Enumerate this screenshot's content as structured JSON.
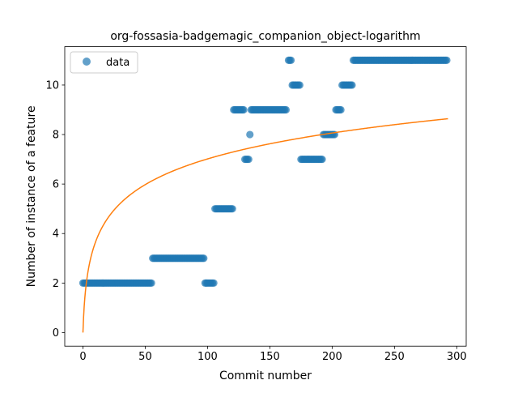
{
  "chart_data": {
    "type": "scatter",
    "title": "org-fossasia-badgemagic_companion_object-logarithm",
    "xlabel": "Commit number",
    "ylabel": "Number of instance of a feature",
    "xlim": [
      -14.6,
      307.6
    ],
    "ylim": [
      -0.55,
      11.55
    ],
    "xticks": [
      0,
      50,
      100,
      150,
      200,
      250,
      300
    ],
    "yticks": [
      0,
      2,
      4,
      6,
      8,
      10
    ],
    "grid": false,
    "legend": {
      "position": "top-left",
      "entries": [
        "data"
      ]
    },
    "colors": {
      "scatter": "#1f77b4",
      "fit": "#ff7f0e"
    },
    "scatter_segments": [
      {
        "x_start": 0,
        "x_end": 56,
        "y": 2
      },
      {
        "x_start": 56,
        "x_end": 98,
        "y": 3
      },
      {
        "x_start": 98,
        "x_end": 106,
        "y": 2
      },
      {
        "x_start": 106,
        "x_end": 121,
        "y": 5
      },
      {
        "x_start": 121,
        "x_end": 130,
        "y": 9
      },
      {
        "x_start": 130,
        "x_end": 134,
        "y": 7
      },
      {
        "x_start": 134,
        "x_end": 135,
        "y": 8
      },
      {
        "x_start": 135,
        "x_end": 164,
        "y": 9
      },
      {
        "x_start": 165,
        "x_end": 168,
        "y": 11
      },
      {
        "x_start": 168,
        "x_end": 175,
        "y": 10
      },
      {
        "x_start": 175,
        "x_end": 193,
        "y": 7
      },
      {
        "x_start": 193,
        "x_end": 203,
        "y": 8
      },
      {
        "x_start": 203,
        "x_end": 208,
        "y": 9
      },
      {
        "x_start": 208,
        "x_end": 217,
        "y": 10
      },
      {
        "x_start": 217,
        "x_end": 293,
        "y": 11
      }
    ],
    "fit_curve": {
      "type": "logarithmic",
      "formula": "y = a * ln(x + 1)",
      "a": 1.52,
      "x_start": 0,
      "x_end": 293
    }
  }
}
